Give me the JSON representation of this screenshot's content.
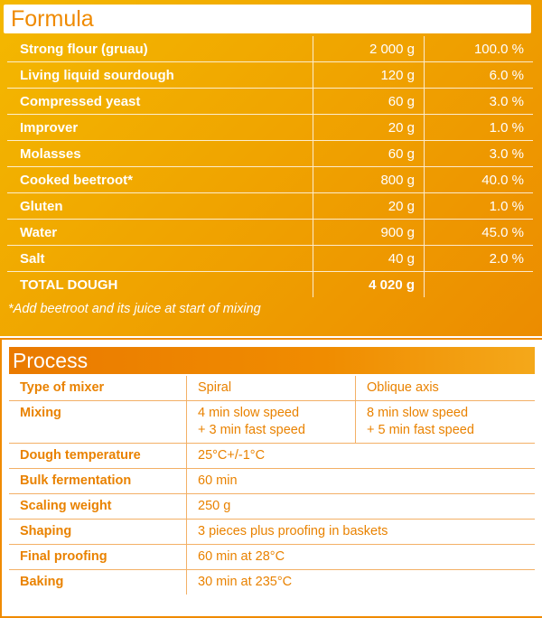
{
  "formula": {
    "title": "Formula",
    "rows": [
      {
        "ingredient": "Strong flour (gruau)",
        "amount": "2 000 g",
        "percent": "100.0 %"
      },
      {
        "ingredient": "Living liquid sourdough",
        "amount": "120 g",
        "percent": "6.0 %"
      },
      {
        "ingredient": "Compressed yeast",
        "amount": "60  g",
        "percent": "3.0 %"
      },
      {
        "ingredient": "Improver",
        "amount": "20 g",
        "percent": "1.0 %"
      },
      {
        "ingredient": "Molasses",
        "amount": "60 g",
        "percent": "3.0 %"
      },
      {
        "ingredient": "Cooked beetroot*",
        "amount": "800 g",
        "percent": "40.0 %"
      },
      {
        "ingredient": "Gluten",
        "amount": "20 g",
        "percent": "1.0 %"
      },
      {
        "ingredient": "Water",
        "amount": "900 g",
        "percent": "45.0 %"
      },
      {
        "ingredient": "Salt",
        "amount": "40 g",
        "percent": "2.0 %"
      }
    ],
    "total": {
      "label": "TOTAL DOUGH",
      "amount": "4 020 g",
      "percent": ""
    },
    "note": "*Add beetroot and its juice at start of mixing"
  },
  "process": {
    "title": "Process",
    "mixer": {
      "label": "Type of mixer",
      "spiral": "Spiral",
      "oblique": "Oblique axis"
    },
    "mixing": {
      "label": "Mixing",
      "spiral_line1": "4 min slow speed",
      "spiral_line2": "+ 3 min fast speed",
      "oblique_line1": "8 min slow speed",
      "oblique_line2": "+ 5 min fast speed"
    },
    "steps": [
      {
        "label": "Dough temperature",
        "value": "25°C+/-1°C"
      },
      {
        "label": "Bulk fermentation",
        "value": "60 min"
      },
      {
        "label": "Scaling weight",
        "value": "250 g"
      },
      {
        "label": "Shaping",
        "value": "3 pieces plus proofing in baskets"
      },
      {
        "label": "Final proofing",
        "value": "60 min at 28°C"
      },
      {
        "label": "Baking",
        "value": "30 min at 235°C"
      }
    ]
  }
}
